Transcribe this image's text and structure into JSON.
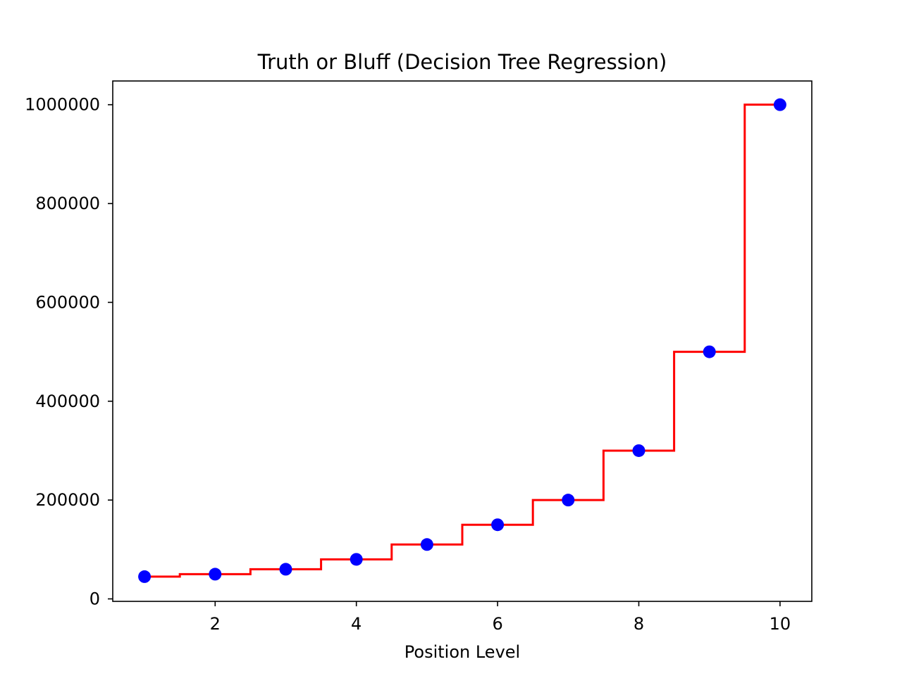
{
  "chart_data": {
    "type": "scatter",
    "title": "Truth or Bluff (Decision Tree Regression)",
    "xlabel": "Position Level",
    "ylabel": "",
    "xlim": [
      0.55,
      10.45
    ],
    "ylim": [
      -5000,
      1048000
    ],
    "xticks": [
      2,
      4,
      6,
      8,
      10
    ],
    "yticks": [
      0,
      200000,
      400000,
      600000,
      800000,
      1000000
    ],
    "grid": false,
    "series": [
      {
        "kind": "scatter",
        "color": "#0000ff",
        "x": [
          1,
          2,
          3,
          4,
          5,
          6,
          7,
          8,
          9,
          10
        ],
        "y": [
          45000,
          50000,
          60000,
          80000,
          110000,
          150000,
          200000,
          300000,
          500000,
          1000000
        ]
      },
      {
        "kind": "step",
        "color": "#ff0000",
        "x_start": 1,
        "x_end": 10,
        "breakpoints": [
          1.5,
          2.5,
          3.5,
          4.5,
          5.5,
          6.5,
          7.5,
          8.5,
          9.5
        ],
        "levels": [
          45000,
          50000,
          60000,
          80000,
          110000,
          150000,
          200000,
          300000,
          500000,
          1000000
        ]
      }
    ]
  }
}
